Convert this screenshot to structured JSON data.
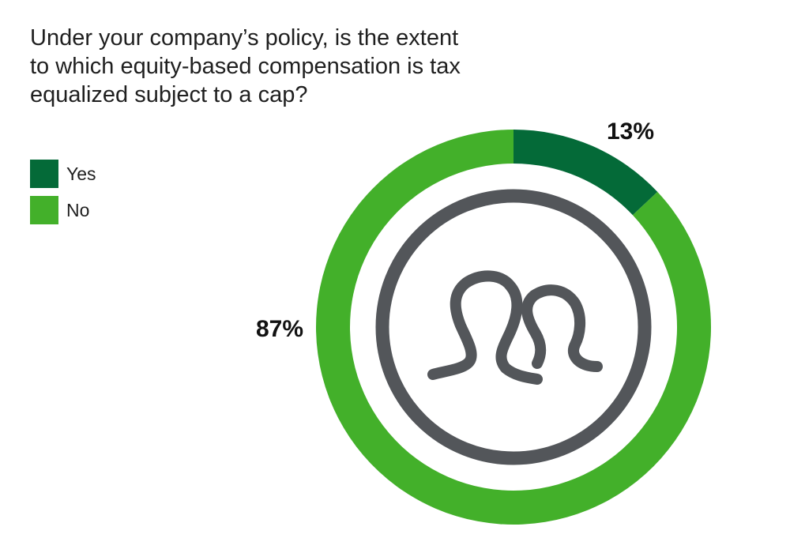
{
  "title_lines": [
    "Under your company’s policy, is the extent",
    "to which equity-based compensation is tax",
    "equalized subject to a cap?"
  ],
  "legend": [
    {
      "label": "Yes",
      "color": "#046a38"
    },
    {
      "label": "No",
      "color": "#43b02a"
    }
  ],
  "center_icon": "people-outline-icon",
  "icon_color": "#53565a",
  "chart_data": {
    "type": "pie",
    "variant": "donut",
    "title": "Under your company’s policy, is the extent to which equity-based compensation is tax equalized subject to a cap?",
    "categories": [
      "Yes",
      "No"
    ],
    "values": [
      13,
      87
    ],
    "labels": [
      "13%",
      "87%"
    ],
    "colors": [
      "#046a38",
      "#43b02a"
    ],
    "legend_position": "top-left"
  }
}
